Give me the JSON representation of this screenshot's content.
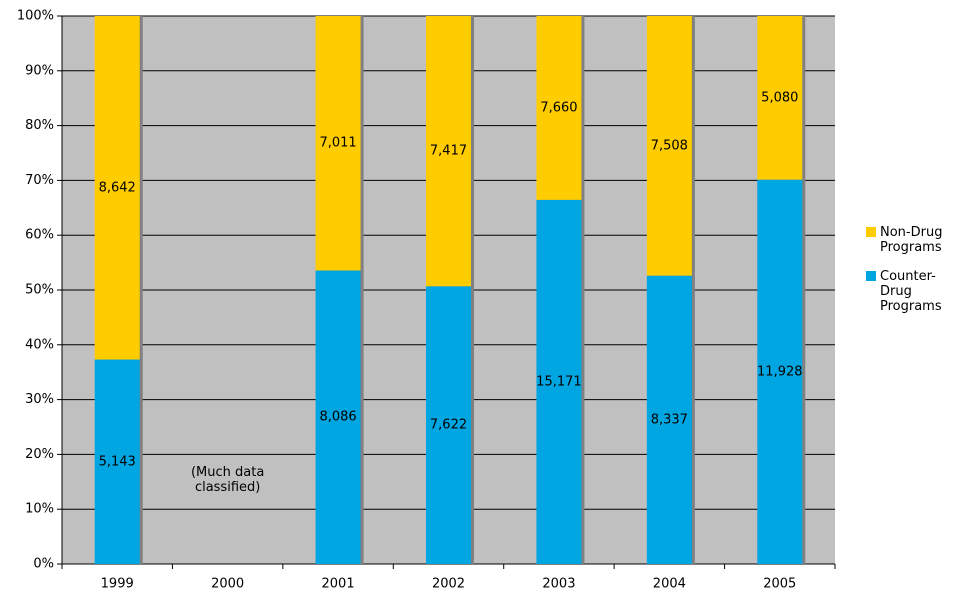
{
  "chart_data": {
    "type": "bar",
    "stacked": "percent",
    "categories": [
      "1999",
      "2000",
      "2001",
      "2002",
      "2003",
      "2004",
      "2005"
    ],
    "series": [
      {
        "name": "Counter-Drug Programs",
        "color": "#00a6e2",
        "values": [
          5143,
          null,
          8086,
          7622,
          15171,
          8337,
          11928
        ],
        "value_labels": [
          "5,143",
          null,
          "8,086",
          "7,622",
          "15,171",
          "8,337",
          "11,928"
        ]
      },
      {
        "name": "Non-Drug Programs",
        "color": "#ffcc00",
        "values": [
          8642,
          null,
          7011,
          7417,
          7660,
          7508,
          5080
        ],
        "value_labels": [
          "8,642",
          null,
          "7,011",
          "7,417",
          "7,660",
          "7,508",
          "5,080"
        ]
      }
    ],
    "annotation": "(Much data classified)",
    "ylim": [
      0,
      100
    ],
    "yticks": [
      {
        "value": 0,
        "label": "0%"
      },
      {
        "value": 10,
        "label": "10%"
      },
      {
        "value": 20,
        "label": "20%"
      },
      {
        "value": 30,
        "label": "30%"
      },
      {
        "value": 40,
        "label": "40%"
      },
      {
        "value": 50,
        "label": "50%"
      },
      {
        "value": 60,
        "label": "60%"
      },
      {
        "value": 70,
        "label": "70%"
      },
      {
        "value": 80,
        "label": "80%"
      },
      {
        "value": 90,
        "label": "90%"
      },
      {
        "value": 100,
        "label": "100%"
      }
    ],
    "grid": true,
    "plot_background": "#c0c0c0",
    "legend": "right"
  }
}
